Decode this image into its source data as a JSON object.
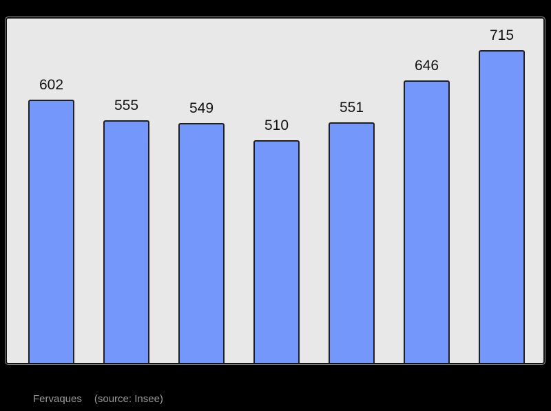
{
  "chart_data": {
    "type": "bar",
    "title": "",
    "values": [
      602,
      555,
      549,
      510,
      551,
      646,
      715
    ],
    "bar_value_labels": [
      "602",
      "555",
      "549",
      "510",
      "551",
      "646",
      "715"
    ],
    "ylim": [
      0,
      788
    ],
    "grid": false,
    "legend": "none",
    "bar_color": "#7397fa",
    "bar_border_color": "#1f1f1f",
    "plot_background": "#e8e8e8",
    "frame_border_color": "#141414",
    "outer_background": "#000000",
    "value_label_color": "#111111"
  },
  "caption": {
    "commune": "Fervaques",
    "source": "(source: Insee)",
    "color": "#999999"
  }
}
